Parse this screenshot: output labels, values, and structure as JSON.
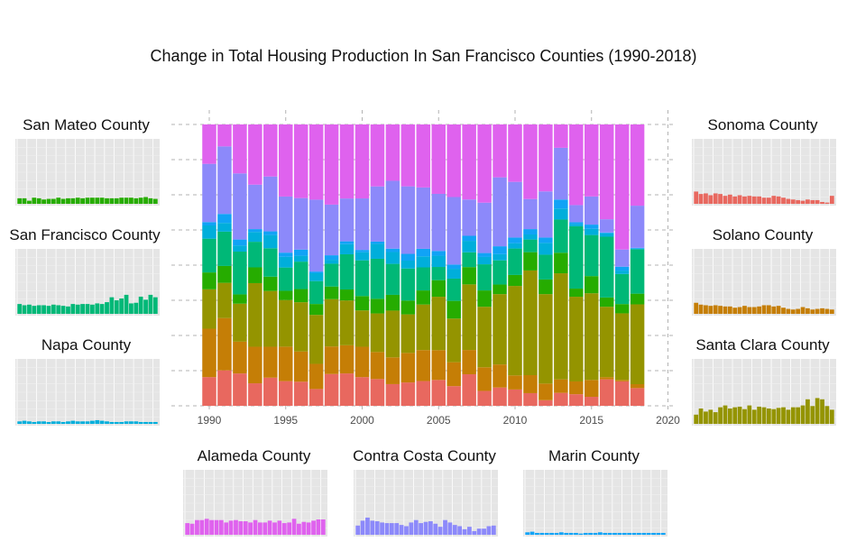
{
  "chart_data": {
    "title": "Change in Total Housing Production In San Francisco Counties (1990-2018)",
    "main": {
      "type": "bar",
      "stacked": true,
      "normalized_to_full_height": true,
      "x": [
        1990,
        1991,
        1992,
        1993,
        1994,
        1995,
        1996,
        1997,
        1998,
        1999,
        2000,
        2001,
        2002,
        2003,
        2004,
        2005,
        2006,
        2007,
        2008,
        2009,
        2010,
        2011,
        2012,
        2013,
        2014,
        2015,
        2016,
        2017,
        2018
      ],
      "xlim": [
        1989.5,
        2020
      ],
      "xticks": [
        1990,
        1995,
        2000,
        2005,
        2010,
        2015,
        2020
      ],
      "grid": true,
      "series_order_bottom_to_top": [
        "Sonoma County",
        "Solano County",
        "Santa Clara County",
        "Napa County",
        "San Francisco County",
        "San Mateo County",
        "Marin County",
        "Contra Costa County",
        "Alameda County"
      ],
      "series": [
        {
          "name": "Sonoma County",
          "color": "#e8685f",
          "values": [
            0.102,
            0.126,
            0.115,
            0.08,
            0.1,
            0.088,
            0.086,
            0.06,
            0.113,
            0.115,
            0.102,
            0.095,
            0.077,
            0.083,
            0.088,
            0.092,
            0.07,
            0.113,
            0.053,
            0.065,
            0.058,
            0.045,
            0.02,
            0.046,
            0.04,
            0.032,
            0.094,
            0.087,
            0.063
          ]
        },
        {
          "name": "Solano County",
          "color": "#c57e06",
          "values": [
            0.172,
            0.186,
            0.113,
            0.13,
            0.11,
            0.123,
            0.108,
            0.09,
            0.098,
            0.1,
            0.108,
            0.096,
            0.095,
            0.105,
            0.11,
            0.106,
            0.085,
            0.087,
            0.084,
            0.082,
            0.05,
            0.064,
            0.059,
            0.048,
            0.044,
            0.06,
            0.008,
            0.005,
            0.014
          ]
        },
        {
          "name": "Santa Clara County",
          "color": "#949400",
          "values": [
            0.14,
            0.125,
            0.135,
            0.226,
            0.198,
            0.166,
            0.176,
            0.175,
            0.168,
            0.159,
            0.129,
            0.137,
            0.166,
            0.137,
            0.162,
            0.19,
            0.155,
            0.235,
            0.215,
            0.25,
            0.318,
            0.372,
            0.318,
            0.377,
            0.292,
            0.308,
            0.25,
            0.237,
            0.284
          ]
        },
        {
          "name": "Napa County",
          "color": "#26ac00",
          "values": [
            0.06,
            0.06,
            0.033,
            0.056,
            0.051,
            0.033,
            0.047,
            0.039,
            0.045,
            0.039,
            0.051,
            0.052,
            0.056,
            0.049,
            0.05,
            0.059,
            0.063,
            0.062,
            0.058,
            0.034,
            0.039,
            0.065,
            0.052,
            0.073,
            0.028,
            0.061,
            0.033,
            0.033,
            0.038
          ]
        },
        {
          "name": "San Francisco County",
          "color": "#00b877",
          "values": [
            0.12,
            0.122,
            0.152,
            0.091,
            0.101,
            0.083,
            0.098,
            0.082,
            0.081,
            0.125,
            0.127,
            0.142,
            0.11,
            0.114,
            0.082,
            0.047,
            0.079,
            0.053,
            0.093,
            0.086,
            0.094,
            0.045,
            0.088,
            0.118,
            0.215,
            0.146,
            0.216,
            0.107,
            0.158
          ]
        },
        {
          "name": "San Mateo County",
          "color": "#00aedb",
          "values": [
            0.047,
            0.031,
            0.022,
            0.035,
            0.047,
            0.038,
            0.021,
            0.028,
            0.014,
            0.036,
            0.029,
            0.053,
            0.042,
            0.028,
            0.039,
            0.04,
            0.035,
            0.041,
            0.026,
            0.022,
            0.019,
            0.018,
            0.042,
            0.039,
            0.007,
            0.022,
            0.012,
            0.012,
            0.002
          ]
        },
        {
          "name": "Marin County",
          "color": "#10a3f6",
          "values": [
            0.012,
            0.032,
            0.021,
            0.01,
            0.013,
            0.015,
            0.022,
            0.006,
            0.016,
            0.01,
            0.008,
            0.008,
            0.012,
            0.024,
            0.027,
            0.017,
            0.015,
            0.018,
            0.014,
            0.028,
            0.02,
            0.019,
            0.019,
            0.032,
            0.007,
            0.015,
            0.003,
            0.014,
            0.003
          ]
        },
        {
          "name": "Contra Costa County",
          "color": "#8c89fa",
          "values": [
            0.207,
            0.24,
            0.235,
            0.158,
            0.195,
            0.2,
            0.184,
            0.257,
            0.18,
            0.152,
            0.183,
            0.196,
            0.241,
            0.24,
            0.218,
            0.203,
            0.24,
            0.13,
            0.179,
            0.245,
            0.198,
            0.107,
            0.164,
            0.184,
            0.059,
            0.1,
            0.047,
            0.061,
            0.15
          ]
        },
        {
          "name": "Alameda County",
          "color": "#df62ee",
          "values": [
            0.14,
            0.078,
            0.174,
            0.214,
            0.185,
            0.257,
            0.263,
            0.269,
            0.285,
            0.263,
            0.263,
            0.22,
            0.2,
            0.22,
            0.224,
            0.247,
            0.258,
            0.269,
            0.278,
            0.188,
            0.204,
            0.265,
            0.238,
            0.083,
            0.278,
            0.256,
            0.337,
            0.445,
            0.289
          ]
        }
      ]
    },
    "small_multiples": [
      {
        "name": "San Mateo County",
        "color": "#26ac00",
        "values": [
          0.09,
          0.09,
          0.05,
          0.1,
          0.09,
          0.07,
          0.08,
          0.08,
          0.1,
          0.08,
          0.09,
          0.09,
          0.1,
          0.09,
          0.1,
          0.1,
          0.1,
          0.1,
          0.09,
          0.09,
          0.09,
          0.1,
          0.1,
          0.1,
          0.09,
          0.1,
          0.11,
          0.09,
          0.08
        ]
      },
      {
        "name": "San Francisco County",
        "color": "#00b877",
        "values": [
          0.16,
          0.14,
          0.15,
          0.13,
          0.14,
          0.14,
          0.13,
          0.15,
          0.14,
          0.13,
          0.12,
          0.16,
          0.15,
          0.16,
          0.16,
          0.15,
          0.17,
          0.16,
          0.19,
          0.27,
          0.22,
          0.25,
          0.31,
          0.17,
          0.18,
          0.28,
          0.23,
          0.31,
          0.27
        ]
      },
      {
        "name": "Napa County",
        "color": "#00aedb",
        "values": [
          0.04,
          0.05,
          0.04,
          0.03,
          0.04,
          0.04,
          0.03,
          0.04,
          0.04,
          0.03,
          0.04,
          0.05,
          0.04,
          0.04,
          0.04,
          0.05,
          0.06,
          0.05,
          0.04,
          0.03,
          0.03,
          0.03,
          0.04,
          0.04,
          0.04,
          0.03,
          0.03,
          0.03,
          0.03
        ]
      },
      {
        "name": "Sonoma County",
        "color": "#e8685f",
        "values": [
          0.2,
          0.16,
          0.17,
          0.14,
          0.17,
          0.16,
          0.13,
          0.15,
          0.12,
          0.14,
          0.12,
          0.13,
          0.12,
          0.12,
          0.1,
          0.1,
          0.13,
          0.12,
          0.1,
          0.08,
          0.07,
          0.06,
          0.05,
          0.07,
          0.06,
          0.06,
          0.03,
          0.02,
          0.13
        ]
      },
      {
        "name": "Solano County",
        "color": "#c57e06",
        "values": [
          0.18,
          0.15,
          0.14,
          0.13,
          0.14,
          0.13,
          0.12,
          0.12,
          0.1,
          0.11,
          0.13,
          0.11,
          0.11,
          0.12,
          0.14,
          0.14,
          0.12,
          0.13,
          0.1,
          0.08,
          0.07,
          0.08,
          0.11,
          0.09,
          0.07,
          0.08,
          0.09,
          0.08,
          0.07
        ]
      },
      {
        "name": "Santa Clara County",
        "color": "#949400",
        "values": [
          0.15,
          0.25,
          0.2,
          0.23,
          0.19,
          0.27,
          0.3,
          0.25,
          0.27,
          0.28,
          0.24,
          0.3,
          0.23,
          0.28,
          0.27,
          0.25,
          0.24,
          0.26,
          0.27,
          0.23,
          0.27,
          0.27,
          0.3,
          0.4,
          0.29,
          0.42,
          0.4,
          0.29,
          0.23
        ]
      },
      {
        "name": "Alameda County",
        "color": "#df62ee",
        "values": [
          0.19,
          0.18,
          0.24,
          0.24,
          0.26,
          0.24,
          0.24,
          0.24,
          0.2,
          0.23,
          0.24,
          0.22,
          0.22,
          0.2,
          0.24,
          0.2,
          0.2,
          0.23,
          0.2,
          0.23,
          0.19,
          0.2,
          0.26,
          0.18,
          0.21,
          0.2,
          0.23,
          0.25,
          0.25
        ]
      },
      {
        "name": "Contra Costa County",
        "color": "#8c89fa",
        "values": [
          0.15,
          0.23,
          0.28,
          0.23,
          0.22,
          0.2,
          0.19,
          0.19,
          0.19,
          0.16,
          0.14,
          0.2,
          0.24,
          0.19,
          0.21,
          0.22,
          0.18,
          0.13,
          0.24,
          0.2,
          0.16,
          0.14,
          0.09,
          0.13,
          0.06,
          0.1,
          0.1,
          0.14,
          0.15
        ]
      },
      {
        "name": "Marin County",
        "color": "#10a3f6",
        "values": [
          0.04,
          0.05,
          0.03,
          0.03,
          0.03,
          0.03,
          0.03,
          0.04,
          0.03,
          0.03,
          0.03,
          0.02,
          0.03,
          0.03,
          0.03,
          0.04,
          0.03,
          0.03,
          0.03,
          0.03,
          0.03,
          0.03,
          0.03,
          0.03,
          0.03,
          0.03,
          0.03,
          0.03,
          0.03
        ]
      }
    ]
  }
}
